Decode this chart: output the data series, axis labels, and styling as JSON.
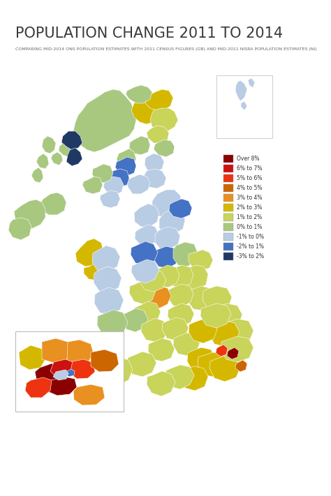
{
  "title": "POPULATION CHANGE 2011 TO 2014",
  "subtitle": "COMPARING MID-2014 ONS POPULATION ESTIMATES WITH 2011 CENSUS FIGURES (GB) AND MID-2011 NISRA POPULATION ESTIMATES (NI)",
  "background_color": "#ffffff",
  "title_fontsize": 15,
  "subtitle_fontsize": 4.5,
  "legend_entries": [
    {
      "label": "Over 8%",
      "color": "#8B0000"
    },
    {
      "label": "6% to 7%",
      "color": "#CC1111"
    },
    {
      "label": "5% to 6%",
      "color": "#EE3311"
    },
    {
      "label": "4% to 5%",
      "color": "#CC6600"
    },
    {
      "label": "3% to 4%",
      "color": "#E89020"
    },
    {
      "label": "2% to 3%",
      "color": "#D4B800"
    },
    {
      "label": "1% to 2%",
      "color": "#C8D45A"
    },
    {
      "label": "0% to 1%",
      "color": "#A8C880"
    },
    {
      "label": "-1% to 0%",
      "color": "#B8CCE4"
    },
    {
      "label": "-2% to 1%",
      "color": "#4472C4"
    },
    {
      "label": "-3% to 2%",
      "color": "#1F3864"
    }
  ],
  "figsize": [
    4.74,
    7.11
  ],
  "dpi": 100
}
